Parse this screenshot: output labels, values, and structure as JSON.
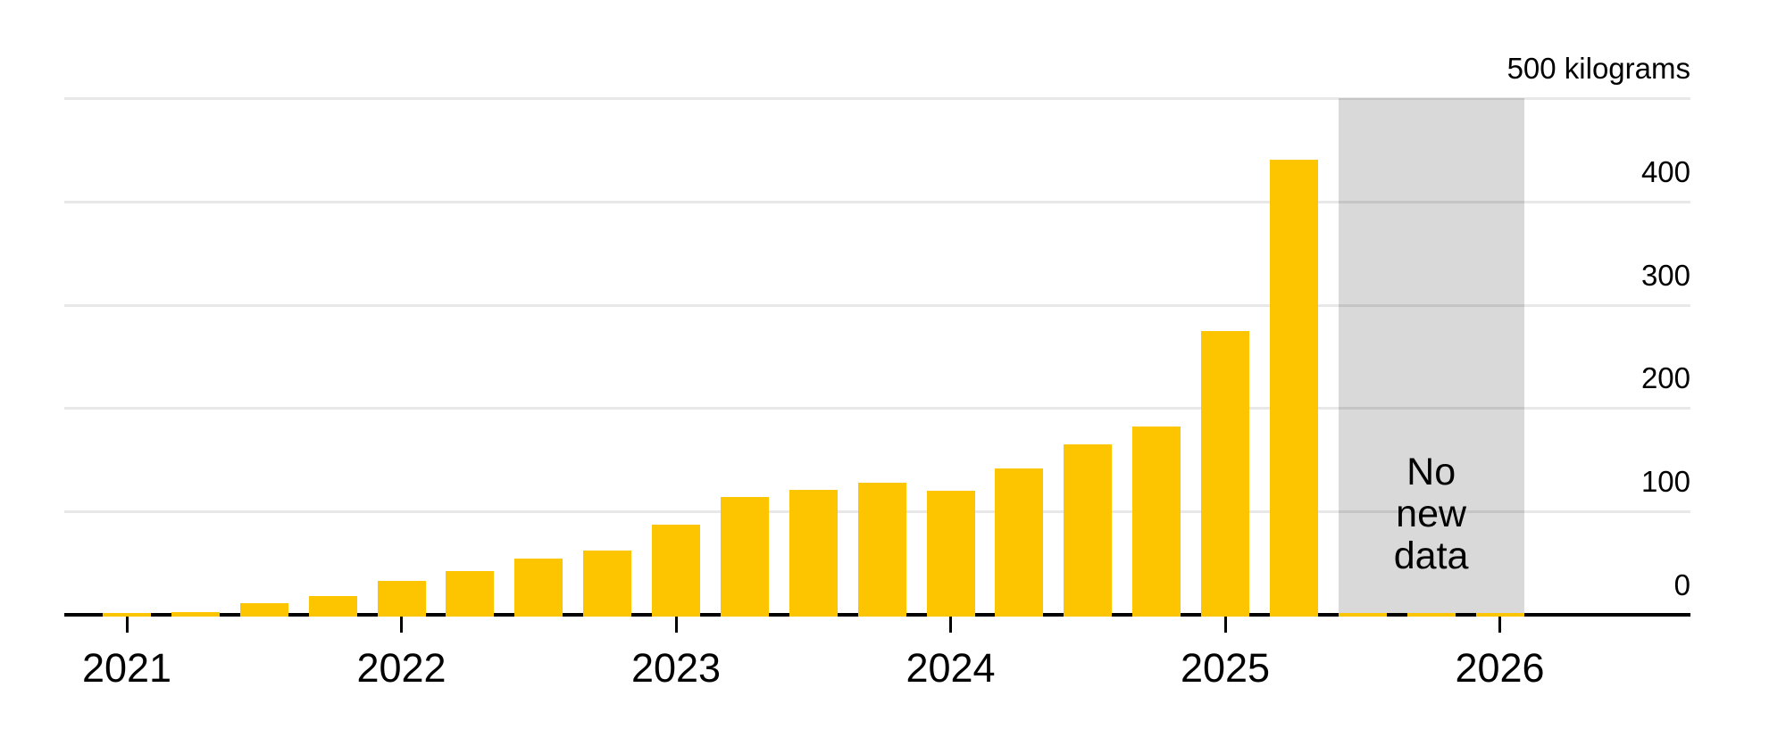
{
  "chart_data": {
    "type": "bar",
    "title": "",
    "unit": "kilograms",
    "grid": true,
    "legend_position": "none",
    "y_axis": {
      "range": [
        0,
        500
      ],
      "ticks": [
        {
          "value": 500,
          "label": "500 kilograms"
        },
        {
          "value": 400,
          "label": "400"
        },
        {
          "value": 300,
          "label": "300"
        },
        {
          "value": 200,
          "label": "200"
        },
        {
          "value": 100,
          "label": "100"
        },
        {
          "value": 0,
          "label": "0"
        }
      ]
    },
    "x_axis": {
      "year_labels": [
        "2021",
        "2022",
        "2023",
        "2024",
        "2025",
        "2026"
      ],
      "quarters_per_year": 4
    },
    "categories": [
      "2021 Q1",
      "2021 Q2",
      "2021 Q3",
      "2021 Q4",
      "2022 Q1",
      "2022 Q2",
      "2022 Q3",
      "2022 Q4",
      "2023 Q1",
      "2023 Q2",
      "2023 Q3",
      "2023 Q4",
      "2024 Q1",
      "2024 Q2",
      "2024 Q3",
      "2024 Q4",
      "2025 Q1",
      "2025 Q2",
      "2025 Q3",
      "2025 Q4",
      "2026 Q1"
    ],
    "values": [
      2,
      3,
      11,
      18,
      33,
      42,
      54,
      62,
      87,
      114,
      121,
      128,
      120,
      142,
      165,
      182,
      275,
      440,
      2,
      2,
      2
    ],
    "no_new_data": {
      "label": "No new data",
      "label_multiline": "No\nnew\ndata",
      "start_category": "2025 Q3",
      "end_category": "2026 Q1",
      "start_index": 18,
      "end_index": 20
    },
    "colors": {
      "bar": "#FDC400",
      "shade": "#D9D9D9",
      "grid": "rgba(0,0,0,0.09)",
      "axis": "#000000",
      "text": "#000000"
    }
  }
}
